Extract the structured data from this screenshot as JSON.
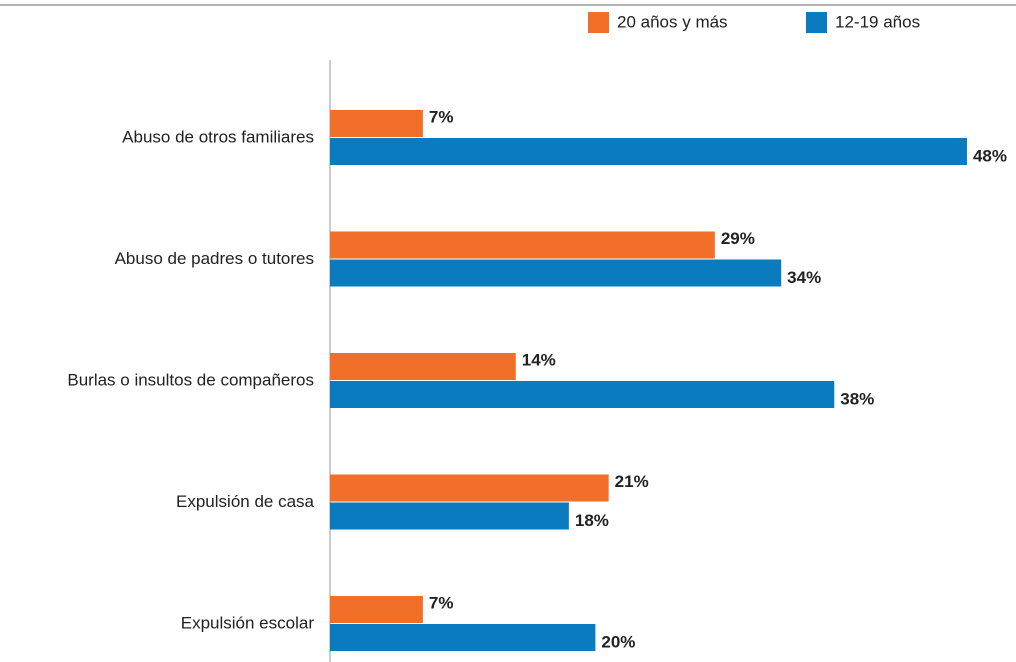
{
  "chart_data": {
    "type": "bar",
    "orientation": "horizontal",
    "categories": [
      "Abuso de otros familiares",
      "Abuso de padres o tutores",
      "Burlas o insultos de compañeros",
      "Expulsión de casa",
      "Expulsión escolar"
    ],
    "series": [
      {
        "name": "20 años y más",
        "color": "#f26f2a",
        "values": [
          7,
          29,
          14,
          21,
          7
        ],
        "value_labels": [
          "7%",
          "29%",
          "14%",
          "21%",
          "7%"
        ]
      },
      {
        "name": "12-19 años",
        "color": "#0a7bbf",
        "values": [
          48,
          34,
          38,
          18,
          20
        ],
        "value_labels": [
          "48%",
          "34%",
          "38%",
          "18%",
          "20%"
        ]
      }
    ],
    "legend": "top-right"
  }
}
